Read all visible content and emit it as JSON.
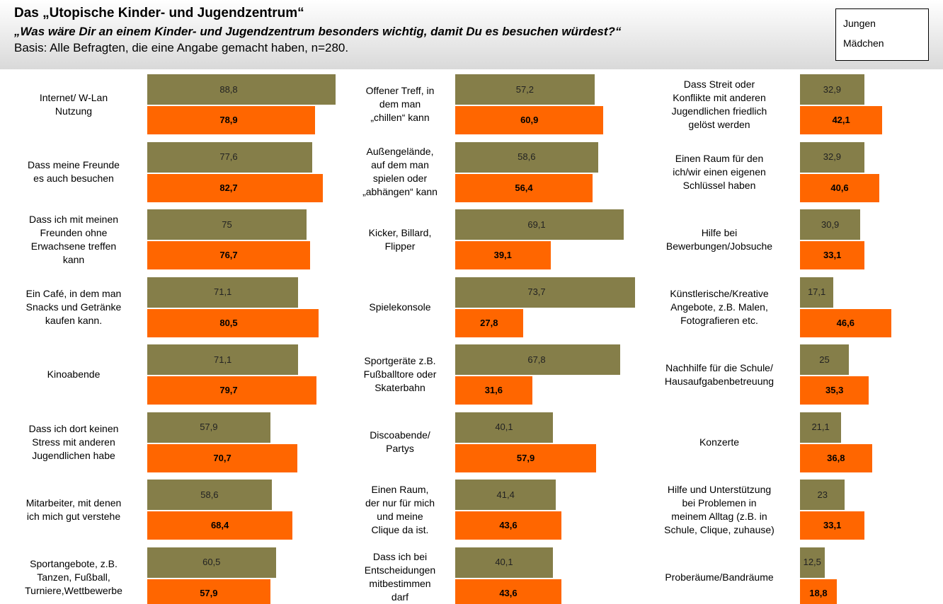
{
  "header": {
    "title": "Das „Utopische Kinder- und Jugendzentrum“",
    "subtitle": "„Was wäre Dir an einem Kinder- und Jugendzentrum besonders wichtig, damit Du es besuchen würdest?“",
    "note": "Basis: Alle Befragten, die eine Angabe gemacht haben, n=280."
  },
  "chart_data": [
    {
      "type": "bar",
      "orientation": "horizontal",
      "xlim": [
        0,
        90
      ],
      "categories": [
        "Internet/ W-Lan\nNutzung",
        "Dass meine Freunde\nes auch besuchen",
        "Dass ich mit meinen\nFreunden ohne\nErwachsene treffen\nkann",
        "Ein Café, in dem man\nSnacks und Getränke\nkaufen kann.",
        "Kinoabende",
        "Dass ich dort keinen\nStress mit anderen\nJugendlichen habe",
        "Mitarbeiter, mit denen\nich mich gut verstehe",
        "Sportangebote, z.B.\nTanzen, Fußball,\nTurniere,Wettbewerbe"
      ],
      "series": [
        {
          "name": "Jungen",
          "color": "#857e49",
          "values": [
            88.8,
            77.6,
            75,
            71.1,
            71.1,
            57.9,
            58.6,
            60.5
          ],
          "value_labels": [
            "88,8",
            "77,6",
            "75",
            "71,1",
            "71,1",
            "57,9",
            "58,6",
            "60,5"
          ]
        },
        {
          "name": "Mädchen",
          "color": "#ff6600",
          "values": [
            78.9,
            82.7,
            76.7,
            80.5,
            79.7,
            70.7,
            68.4,
            57.9
          ],
          "value_labels": [
            "78,9",
            "82,7",
            "76,7",
            "80,5",
            "79,7",
            "70,7",
            "68,4",
            "57,9"
          ]
        }
      ]
    },
    {
      "type": "bar",
      "orientation": "horizontal",
      "xlim": [
        0,
        75
      ],
      "categories": [
        "Offener Treff, in\ndem man\n„chillen“ kann",
        "Außengelände,\nauf dem man\nspielen oder\n„abhängen“ kann",
        "Kicker, Billard,\nFlipper",
        "Spielekonsole",
        "Sportgeräte z.B.\nFußballtore oder\nSkaterbahn",
        "Discoabende/\nPartys",
        "Einen Raum,\nder nur für mich\nund meine\nClique da ist.",
        "Dass ich bei\nEntscheidungen\nmitbestimmen\ndarf"
      ],
      "series": [
        {
          "name": "Jungen",
          "color": "#857e49",
          "values": [
            57.2,
            58.6,
            69.1,
            73.7,
            67.8,
            40.1,
            41.4,
            40.1
          ],
          "value_labels": [
            "57,2",
            "58,6",
            "69,1",
            "73,7",
            "67,8",
            "40,1",
            "41,4",
            "40,1"
          ]
        },
        {
          "name": "Mädchen",
          "color": "#ff6600",
          "values": [
            60.9,
            56.4,
            39.1,
            27.8,
            31.6,
            57.9,
            43.6,
            43.6
          ],
          "value_labels": [
            "60,9",
            "56,4",
            "39,1",
            "27,8",
            "31,6",
            "57,9",
            "43,6",
            "43,6"
          ]
        }
      ]
    },
    {
      "type": "bar",
      "orientation": "horizontal",
      "xlim": [
        0,
        50
      ],
      "categories": [
        "Dass Streit oder\nKonflikte mit anderen\nJugendlichen friedlich\ngelöst werden",
        "Einen Raum für den\nich/wir einen eigenen\nSchlüssel haben",
        "Hilfe bei\nBewerbungen/Jobsuche",
        "Künstlerische/Kreative\nAngebote, z.B. Malen,\nFotografieren etc.",
        "Nachhilfe für die Schule/\nHausaufgabenbetreuung",
        "Konzerte",
        "Hilfe und Unterstützung\nbei Problemen in\nmeinem Alltag (z.B. in\nSchule, Clique, zuhause)",
        "Proberäume/Bandräume"
      ],
      "series": [
        {
          "name": "Jungen",
          "color": "#857e49",
          "values": [
            32.9,
            32.9,
            30.9,
            17.1,
            25,
            21.1,
            23,
            12.5
          ],
          "value_labels": [
            "32,9",
            "32,9",
            "30,9",
            "17,1",
            "25",
            "21,1",
            "23",
            "12,5"
          ]
        },
        {
          "name": "Mädchen",
          "color": "#ff6600",
          "values": [
            42.1,
            40.6,
            33.1,
            46.6,
            35.3,
            36.8,
            33.1,
            18.8
          ],
          "value_labels": [
            "42,1",
            "40,6",
            "33,1",
            "46,6",
            "35,3",
            "36,8",
            "33,1",
            "18,8"
          ]
        }
      ]
    }
  ]
}
